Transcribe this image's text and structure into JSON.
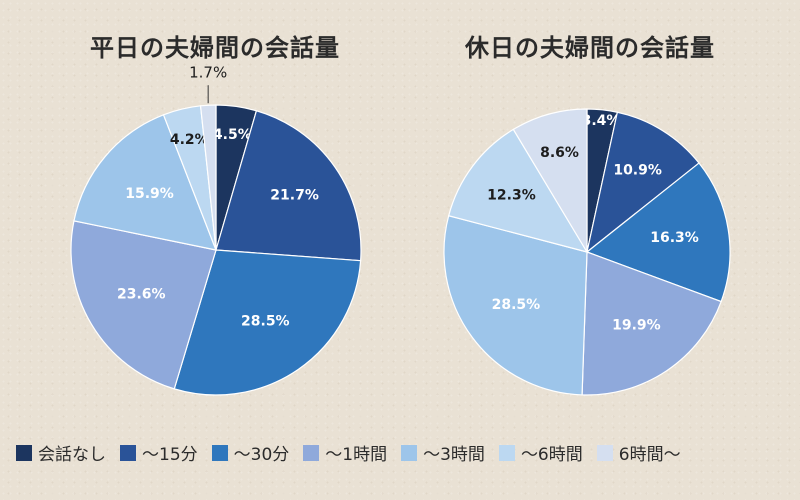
{
  "chart_data": [
    {
      "type": "pie",
      "title": "平日の夫婦間の会話量",
      "categories": [
        "会話なし",
        "～15分",
        "～30分",
        "～1時間",
        "～3時間",
        "～6時間",
        "6時間～"
      ],
      "values": [
        4.5,
        21.7,
        28.5,
        23.6,
        15.9,
        4.2,
        1.7
      ],
      "labels": [
        "4.5%",
        "21.7%",
        "28.5%",
        "23.6%",
        "15.9%",
        "4.2%",
        "1.7%"
      ]
    },
    {
      "type": "pie",
      "title": "休日の夫婦間の会話量",
      "categories": [
        "会話なし",
        "～15分",
        "～30分",
        "～1時間",
        "～3時間",
        "～6時間",
        "6時間～"
      ],
      "values": [
        3.4,
        10.9,
        16.3,
        19.9,
        28.5,
        12.3,
        8.6
      ],
      "labels": [
        "3.4%",
        "10.9%",
        "16.3%",
        "19.9%",
        "28.5%",
        "12.3%",
        "8.6%"
      ]
    }
  ],
  "legend": {
    "items": [
      "会話なし",
      "～15分",
      "～30分",
      "～1時間",
      "～3時間",
      "～6時間",
      "6時間～"
    ],
    "colors": [
      "#1c355f",
      "#2a5398",
      "#2f77bd",
      "#8fa9db",
      "#9dc5ea",
      "#bcd8f1",
      "#d5dff0"
    ]
  },
  "colors": [
    "#1c355f",
    "#2a5398",
    "#2f77bd",
    "#8fa9db",
    "#9dc5ea",
    "#bcd8f1",
    "#d5dff0"
  ]
}
